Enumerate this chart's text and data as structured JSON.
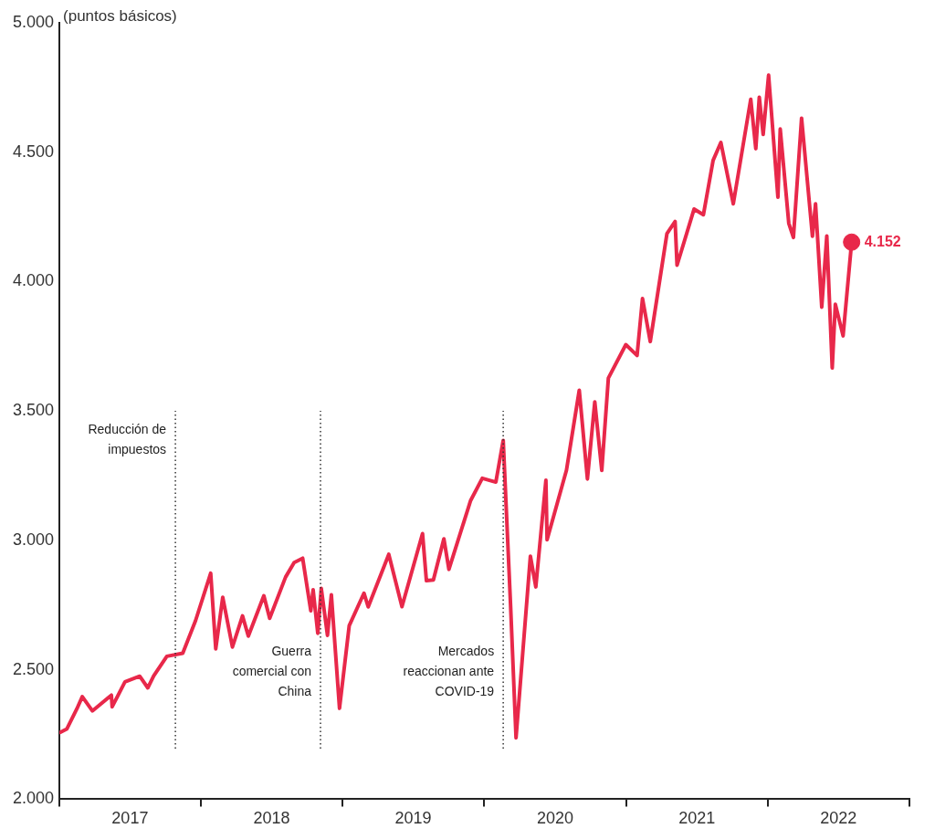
{
  "chart_data": {
    "type": "line",
    "ylabel": "(puntos básicos)",
    "x": [
      "2017-01-03",
      "2017-01-20",
      "2017-02-15",
      "2017-03-01",
      "2017-03-27",
      "2017-05-15",
      "2017-05-17",
      "2017-06-19",
      "2017-07-27",
      "2017-08-17",
      "2017-09-01",
      "2017-10-05",
      "2017-11-15",
      "2017-12-18",
      "2018-01-26",
      "2018-02-08",
      "2018-02-26",
      "2018-03-23",
      "2018-04-18",
      "2018-05-03",
      "2018-06-12",
      "2018-06-27",
      "2018-08-07",
      "2018-08-29",
      "2018-09-20",
      "2018-10-11",
      "2018-10-17",
      "2018-10-29",
      "2018-11-07",
      "2018-11-23",
      "2018-12-03",
      "2018-12-24",
      "2019-01-18",
      "2019-02-25",
      "2019-03-08",
      "2019-04-30",
      "2019-06-03",
      "2019-07-26",
      "2019-08-05",
      "2019-08-23",
      "2019-09-19",
      "2019-10-02",
      "2019-11-27",
      "2019-12-27",
      "2020-01-31",
      "2020-02-19",
      "2020-03-09",
      "2020-03-23",
      "2020-04-29",
      "2020-05-13",
      "2020-06-08",
      "2020-06-11",
      "2020-07-31",
      "2020-09-02",
      "2020-09-23",
      "2020-10-12",
      "2020-10-30",
      "2020-11-16",
      "2020-12-31",
      "2021-01-29",
      "2021-02-12",
      "2021-03-04",
      "2021-04-16",
      "2021-05-07",
      "2021-05-12",
      "2021-06-25",
      "2021-07-19",
      "2021-08-13",
      "2021-09-02",
      "2021-10-04",
      "2021-11-18",
      "2021-12-01",
      "2021-12-10",
      "2021-12-20",
      "2022-01-03",
      "2022-01-27",
      "2022-02-02",
      "2022-02-24",
      "2022-03-08",
      "2022-03-29",
      "2022-04-26",
      "2022-05-04",
      "2022-05-20",
      "2022-06-02",
      "2022-06-16",
      "2022-06-24",
      "2022-07-14",
      "2022-08-05"
    ],
    "series": [
      {
        "color": "#e8284a",
        "values": [
          2258,
          2271,
          2349,
          2396,
          2341,
          2402,
          2357,
          2453,
          2475,
          2430,
          2476,
          2552,
          2564,
          2690,
          2873,
          2581,
          2780,
          2588,
          2708,
          2630,
          2786,
          2699,
          2858,
          2914,
          2931,
          2728,
          2809,
          2641,
          2814,
          2633,
          2790,
          2351,
          2670,
          2796,
          2743,
          2946,
          2744,
          3026,
          2844,
          2847,
          3006,
          2888,
          3154,
          3240,
          3225,
          3386,
          2747,
          2237,
          2939,
          2820,
          3232,
          3002,
          3271,
          3580,
          3237,
          3535,
          3270,
          3627,
          3756,
          3714,
          3934,
          3768,
          4185,
          4232,
          4063,
          4280,
          4258,
          4468,
          4537,
          4300,
          4704,
          4513,
          4712,
          4568,
          4797,
          4326,
          4589,
          4225,
          4170,
          4631,
          4175,
          4300,
          3901,
          4176,
          3666,
          3912,
          3790,
          4152
        ]
      },
      {
        "type": "scatter",
        "marker": "circle",
        "color": "#e8284a",
        "x": [
          "2022-08-05"
        ],
        "values": [
          4152
        ],
        "value_labels": [
          "4.152"
        ]
      }
    ],
    "xlim": [
      "2017-01-01",
      "2023-01-01"
    ],
    "xticks": [
      {
        "value": "2017-01-01",
        "label": null
      },
      {
        "value": "2017-07-02",
        "label": "2017"
      },
      {
        "value": "2018-01-01",
        "label": null
      },
      {
        "value": "2018-07-02",
        "label": "2018"
      },
      {
        "value": "2019-01-01",
        "label": null
      },
      {
        "value": "2019-07-02",
        "label": "2019"
      },
      {
        "value": "2020-01-01",
        "label": null
      },
      {
        "value": "2020-07-02",
        "label": "2020"
      },
      {
        "value": "2021-01-01",
        "label": null
      },
      {
        "value": "2021-07-02",
        "label": "2021"
      },
      {
        "value": "2022-01-01",
        "label": null
      },
      {
        "value": "2022-07-02",
        "label": "2022"
      },
      {
        "value": "2023-01-01",
        "label": null
      }
    ],
    "ylim": [
      2000,
      5000
    ],
    "yticks": [
      {
        "value": 2000,
        "label": "2.000"
      },
      {
        "value": 2500,
        "label": "2.500"
      },
      {
        "value": 3000,
        "label": "3.000"
      },
      {
        "value": 3500,
        "label": "3.500"
      },
      {
        "value": 4000,
        "label": "4.000"
      },
      {
        "value": 4500,
        "label": "4.500"
      },
      {
        "value": 5000,
        "label": "5.000"
      }
    ],
    "ref_lines": [
      {
        "axis": "x",
        "value": "2017-10-27",
        "color": "#333333",
        "line_style": "dotted"
      },
      {
        "axis": "x",
        "value": "2018-11-05",
        "color": "#333333",
        "line_style": "dotted"
      },
      {
        "axis": "x",
        "value": "2020-02-19",
        "color": "#333333",
        "line_style": "dotted"
      }
    ],
    "annotations": [
      {
        "text": "Reducción de\nimpuestos",
        "x": "2017-10-27",
        "y": 3450
      },
      {
        "text": "Guerra\ncomercial con\nChina",
        "x": "2018-11-05",
        "y": 2360
      },
      {
        "text": "Mercados\nreaccionan ante\nCOVID-19",
        "x": "2020-02-19",
        "y": 2360
      }
    ],
    "grid": false,
    "legend": false,
    "line_style": "solid"
  }
}
